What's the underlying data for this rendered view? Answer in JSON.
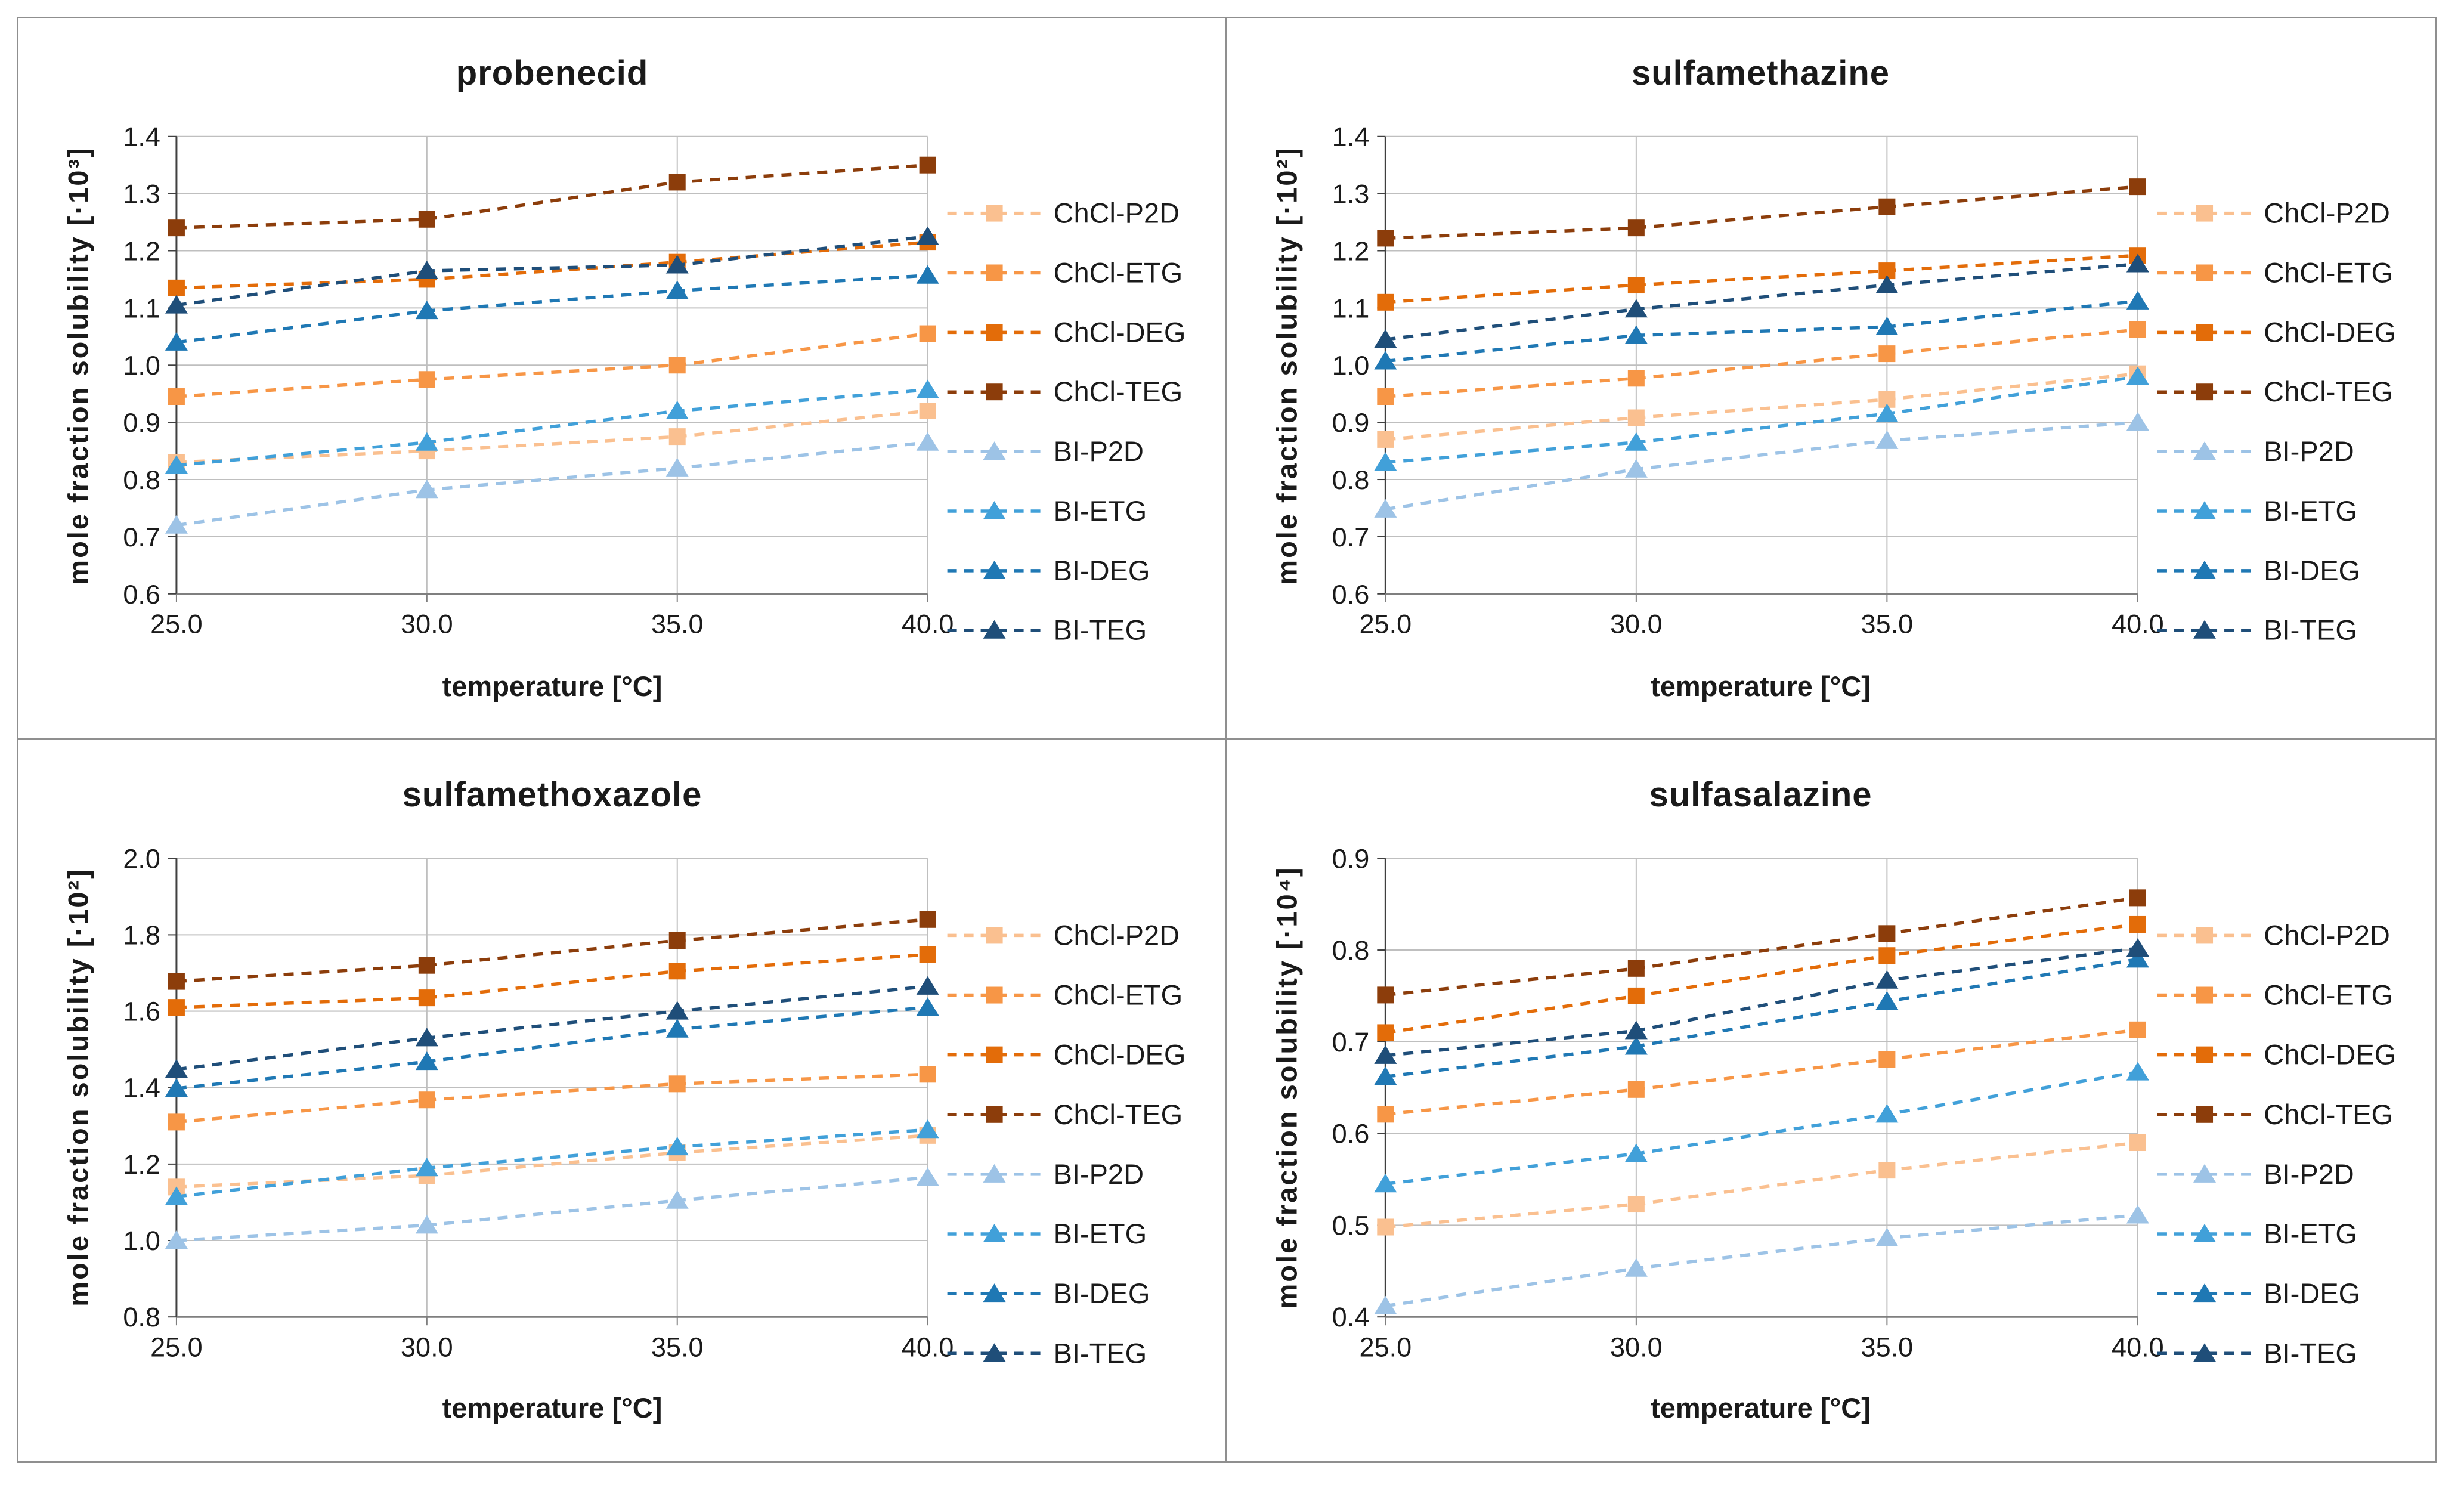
{
  "page": {
    "background": "#FFFFFF",
    "frame_border_color": "#8F8F8F",
    "divider_color": "#8F8F8F"
  },
  "style": {
    "gridline_color": "#BFBFBF",
    "y_axis_color": "#404040",
    "x_axis_color": "#7F7F7F",
    "text_color": "#1A1A1A"
  },
  "chart_data": [
    {
      "type": "line",
      "title": "probenecid",
      "xlabel": "temperature [°C]",
      "ylabel": "mole fraction solubility [·10³]",
      "x_values": [
        25.0,
        30.0,
        35.0,
        40.0
      ],
      "x_tick_labels": [
        "25.0",
        "30.0",
        "35.0",
        "40.0"
      ],
      "ylim": [
        0.6,
        1.4
      ],
      "y_tick_labels": [
        "0.6",
        "0.7",
        "0.8",
        "0.9",
        "1.0",
        "1.1",
        "1.2",
        "1.3",
        "1.4"
      ],
      "grid": true,
      "legend_position": "right",
      "series": [
        {
          "name": "ChCl-P2D",
          "marker": "square",
          "color": "#FAC090",
          "values": [
            0.83,
            0.85,
            0.875,
            0.92
          ]
        },
        {
          "name": "ChCl-ETG",
          "marker": "square",
          "color": "#F79646",
          "values": [
            0.945,
            0.975,
            1.0,
            1.055
          ]
        },
        {
          "name": "ChCl-DEG",
          "marker": "square",
          "color": "#E36C09",
          "values": [
            1.135,
            1.15,
            1.18,
            1.215
          ]
        },
        {
          "name": "ChCl-TEG",
          "marker": "square",
          "color": "#8C3D0B",
          "values": [
            1.24,
            1.255,
            1.32,
            1.35
          ]
        },
        {
          "name": "BI-P2D",
          "marker": "triangle",
          "color": "#9DC3E6",
          "values": [
            0.72,
            0.782,
            0.82,
            0.865
          ]
        },
        {
          "name": "BI-ETG",
          "marker": "triangle",
          "color": "#41A0D9",
          "values": [
            0.825,
            0.865,
            0.92,
            0.957
          ]
        },
        {
          "name": "BI-DEG",
          "marker": "triangle",
          "color": "#1F78B4",
          "values": [
            1.04,
            1.095,
            1.13,
            1.157
          ]
        },
        {
          "name": "BI-TEG",
          "marker": "triangle",
          "color": "#1F4E79",
          "values": [
            1.105,
            1.165,
            1.175,
            1.225
          ]
        }
      ]
    },
    {
      "type": "line",
      "title": "sulfamethazine",
      "xlabel": "temperature [°C]",
      "ylabel": "mole fraction solubility [·10²]",
      "x_values": [
        25.0,
        30.0,
        35.0,
        40.0
      ],
      "x_tick_labels": [
        "25.0",
        "30.0",
        "35.0",
        "40.0"
      ],
      "ylim": [
        0.6,
        1.4
      ],
      "y_tick_labels": [
        "0.6",
        "0.7",
        "0.8",
        "0.9",
        "1.0",
        "1.1",
        "1.2",
        "1.3",
        "1.4"
      ],
      "grid": true,
      "legend_position": "right",
      "series": [
        {
          "name": "ChCl-P2D",
          "marker": "square",
          "color": "#FAC090",
          "values": [
            0.87,
            0.908,
            0.94,
            0.985
          ]
        },
        {
          "name": "ChCl-ETG",
          "marker": "square",
          "color": "#F79646",
          "values": [
            0.945,
            0.977,
            1.02,
            1.062
          ]
        },
        {
          "name": "ChCl-DEG",
          "marker": "square",
          "color": "#E36C09",
          "values": [
            1.11,
            1.14,
            1.165,
            1.192
          ]
        },
        {
          "name": "ChCl-TEG",
          "marker": "square",
          "color": "#8C3D0B",
          "values": [
            1.222,
            1.24,
            1.277,
            1.312
          ]
        },
        {
          "name": "BI-P2D",
          "marker": "triangle",
          "color": "#9DC3E6",
          "values": [
            0.748,
            0.818,
            0.868,
            0.9
          ]
        },
        {
          "name": "BI-ETG",
          "marker": "triangle",
          "color": "#41A0D9",
          "values": [
            0.83,
            0.865,
            0.915,
            0.98
          ]
        },
        {
          "name": "BI-DEG",
          "marker": "triangle",
          "color": "#1F78B4",
          "values": [
            1.007,
            1.052,
            1.067,
            1.112
          ]
        },
        {
          "name": "BI-TEG",
          "marker": "triangle",
          "color": "#1F4E79",
          "values": [
            1.045,
            1.098,
            1.14,
            1.177
          ]
        }
      ]
    },
    {
      "type": "line",
      "title": "sulfamethoxazole",
      "xlabel": "temperature [°C]",
      "ylabel": "mole fraction solubility [·10²]",
      "x_values": [
        25.0,
        30.0,
        35.0,
        40.0
      ],
      "x_tick_labels": [
        "25.0",
        "30.0",
        "35.0",
        "40.0"
      ],
      "ylim": [
        0.8,
        2.0
      ],
      "y_tick_labels": [
        "0.8",
        "1.0",
        "1.2",
        "1.4",
        "1.6",
        "1.8",
        "2.0"
      ],
      "grid": true,
      "legend_position": "right",
      "series": [
        {
          "name": "ChCl-P2D",
          "marker": "square",
          "color": "#FAC090",
          "values": [
            1.14,
            1.17,
            1.23,
            1.275
          ]
        },
        {
          "name": "ChCl-ETG",
          "marker": "square",
          "color": "#F79646",
          "values": [
            1.31,
            1.368,
            1.41,
            1.435
          ]
        },
        {
          "name": "ChCl-DEG",
          "marker": "square",
          "color": "#E36C09",
          "values": [
            1.61,
            1.635,
            1.705,
            1.748
          ]
        },
        {
          "name": "ChCl-TEG",
          "marker": "square",
          "color": "#8C3D0B",
          "values": [
            1.678,
            1.72,
            1.785,
            1.84
          ]
        },
        {
          "name": "BI-P2D",
          "marker": "triangle",
          "color": "#9DC3E6",
          "values": [
            1.0,
            1.04,
            1.105,
            1.165
          ]
        },
        {
          "name": "BI-ETG",
          "marker": "triangle",
          "color": "#41A0D9",
          "values": [
            1.115,
            1.19,
            1.245,
            1.29
          ]
        },
        {
          "name": "BI-DEG",
          "marker": "triangle",
          "color": "#1F78B4",
          "values": [
            1.398,
            1.468,
            1.553,
            1.61
          ]
        },
        {
          "name": "BI-TEG",
          "marker": "triangle",
          "color": "#1F4E79",
          "values": [
            1.448,
            1.53,
            1.6,
            1.665
          ]
        }
      ]
    },
    {
      "type": "line",
      "title": "sulfasalazine",
      "xlabel": "temperature [°C]",
      "ylabel": "mole fraction solubility [·10⁴]",
      "x_values": [
        25.0,
        30.0,
        35.0,
        40.0
      ],
      "x_tick_labels": [
        "25.0",
        "30.0",
        "35.0",
        "40.0"
      ],
      "ylim": [
        0.4,
        0.9
      ],
      "y_tick_labels": [
        "0.4",
        "0.5",
        "0.6",
        "0.7",
        "0.8",
        "0.9"
      ],
      "grid": true,
      "legend_position": "right",
      "series": [
        {
          "name": "ChCl-P2D",
          "marker": "square",
          "color": "#FAC090",
          "values": [
            0.498,
            0.523,
            0.56,
            0.59
          ]
        },
        {
          "name": "ChCl-ETG",
          "marker": "square",
          "color": "#F79646",
          "values": [
            0.621,
            0.648,
            0.681,
            0.713
          ]
        },
        {
          "name": "ChCl-DEG",
          "marker": "square",
          "color": "#E36C09",
          "values": [
            0.71,
            0.75,
            0.794,
            0.828
          ]
        },
        {
          "name": "ChCl-TEG",
          "marker": "square",
          "color": "#8C3D0B",
          "values": [
            0.751,
            0.78,
            0.818,
            0.857
          ]
        },
        {
          "name": "BI-P2D",
          "marker": "triangle",
          "color": "#9DC3E6",
          "values": [
            0.412,
            0.453,
            0.486,
            0.511
          ]
        },
        {
          "name": "BI-ETG",
          "marker": "triangle",
          "color": "#41A0D9",
          "values": [
            0.545,
            0.578,
            0.621,
            0.667
          ]
        },
        {
          "name": "BI-DEG",
          "marker": "triangle",
          "color": "#1F78B4",
          "values": [
            0.662,
            0.695,
            0.744,
            0.79
          ]
        },
        {
          "name": "BI-TEG",
          "marker": "triangle",
          "color": "#1F4E79",
          "values": [
            0.685,
            0.712,
            0.767,
            0.802
          ]
        }
      ]
    }
  ]
}
